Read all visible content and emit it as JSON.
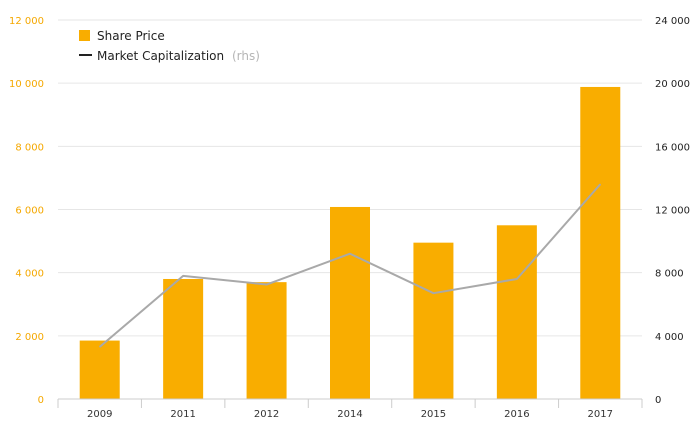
{
  "chart_data": {
    "type": "bar",
    "categories": [
      "2009",
      "2011",
      "2012",
      "2014",
      "2015",
      "2016",
      "2017"
    ],
    "series": [
      {
        "name": "Share Price",
        "type": "bar",
        "axis": "left",
        "color": "#f9ad00",
        "values": [
          1850,
          3800,
          3700,
          6080,
          4950,
          5500,
          9880
        ]
      },
      {
        "name": "Market Capitalization",
        "type": "line",
        "axis": "right",
        "color": "#a9a9a9",
        "values": [
          3300,
          7800,
          7250,
          9200,
          6700,
          7600,
          13600
        ]
      }
    ],
    "legend": {
      "share_price": "Share Price",
      "market_cap": "Market Capitalization",
      "market_cap_suffix": "(rhs)",
      "placement": "top-left"
    },
    "y_left": {
      "ylim": [
        0,
        12000
      ],
      "ticks": [
        0,
        2000,
        4000,
        6000,
        8000,
        10000,
        12000
      ],
      "tick_labels": [
        "0",
        "2 000",
        "4 000",
        "6 000",
        "8 000",
        "10 000",
        "12 000"
      ]
    },
    "y_right": {
      "ylim": [
        0,
        24000
      ],
      "ticks": [
        0,
        4000,
        8000,
        12000,
        16000,
        20000,
        24000
      ],
      "tick_labels": [
        "0",
        "4 000",
        "8 000",
        "12 000",
        "16 000",
        "20 000",
        "24 000"
      ]
    },
    "grid": true
  }
}
